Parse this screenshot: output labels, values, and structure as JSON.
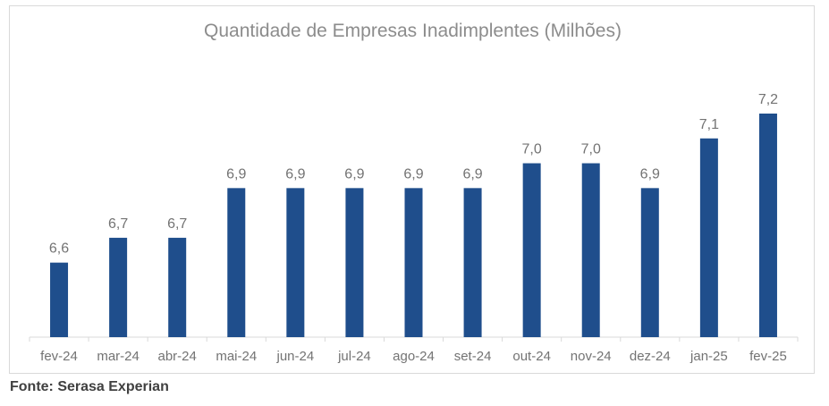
{
  "colors": {
    "bar": "#1f4e8c",
    "label": "#737373",
    "axis": "#d9d9d9",
    "title": "#8c8c8c"
  },
  "source": "Fonte: Serasa Experian",
  "chart_data": {
    "type": "bar",
    "title": "Quantidade de Empresas Inadimplentes (Milhões)",
    "xlabel": "",
    "ylabel": "",
    "categories": [
      "fev-24",
      "mar-24",
      "abr-24",
      "mai-24",
      "jun-24",
      "jul-24",
      "ago-24",
      "set-24",
      "out-24",
      "nov-24",
      "dez-24",
      "jan-25",
      "fev-25"
    ],
    "values": [
      6.6,
      6.7,
      6.7,
      6.9,
      6.9,
      6.9,
      6.9,
      6.9,
      7.0,
      7.0,
      6.9,
      7.1,
      7.2
    ],
    "value_labels": [
      "6,6",
      "6,7",
      "6,7",
      "6,9",
      "6,9",
      "6,9",
      "6,9",
      "6,9",
      "7,0",
      "7,0",
      "6,9",
      "7,1",
      "7,2"
    ],
    "ylim": [
      6.3,
      7.2
    ],
    "grid": false,
    "legend": "none"
  }
}
